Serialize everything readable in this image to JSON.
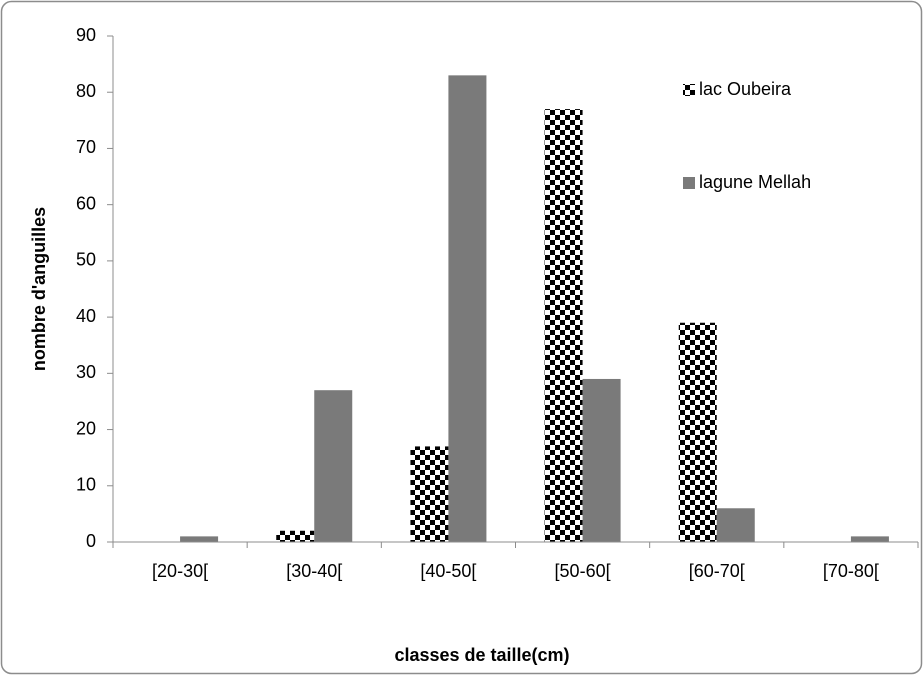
{
  "chart_data": {
    "type": "bar",
    "xlabel": "classes de taille(cm)",
    "ylabel": "nombre d'anguilles",
    "categories": [
      "[20-30[",
      "[30-40[",
      "[40-50[",
      "[50-60[",
      "[60-70[",
      "[70-80["
    ],
    "series": [
      {
        "name": "lac Oubeira",
        "color": "#000000",
        "pattern": "checkerboard",
        "values": [
          0,
          2,
          17,
          77,
          39,
          0
        ]
      },
      {
        "name": "lagune Mellah",
        "color": "#7a7a7a",
        "values": [
          1,
          27,
          83,
          29,
          6,
          1
        ]
      }
    ],
    "ylim": [
      0,
      90
    ],
    "yticks": [
      0,
      10,
      20,
      30,
      40,
      50,
      60,
      70,
      80,
      90
    ],
    "grid": false,
    "legend_position": "upper right"
  }
}
